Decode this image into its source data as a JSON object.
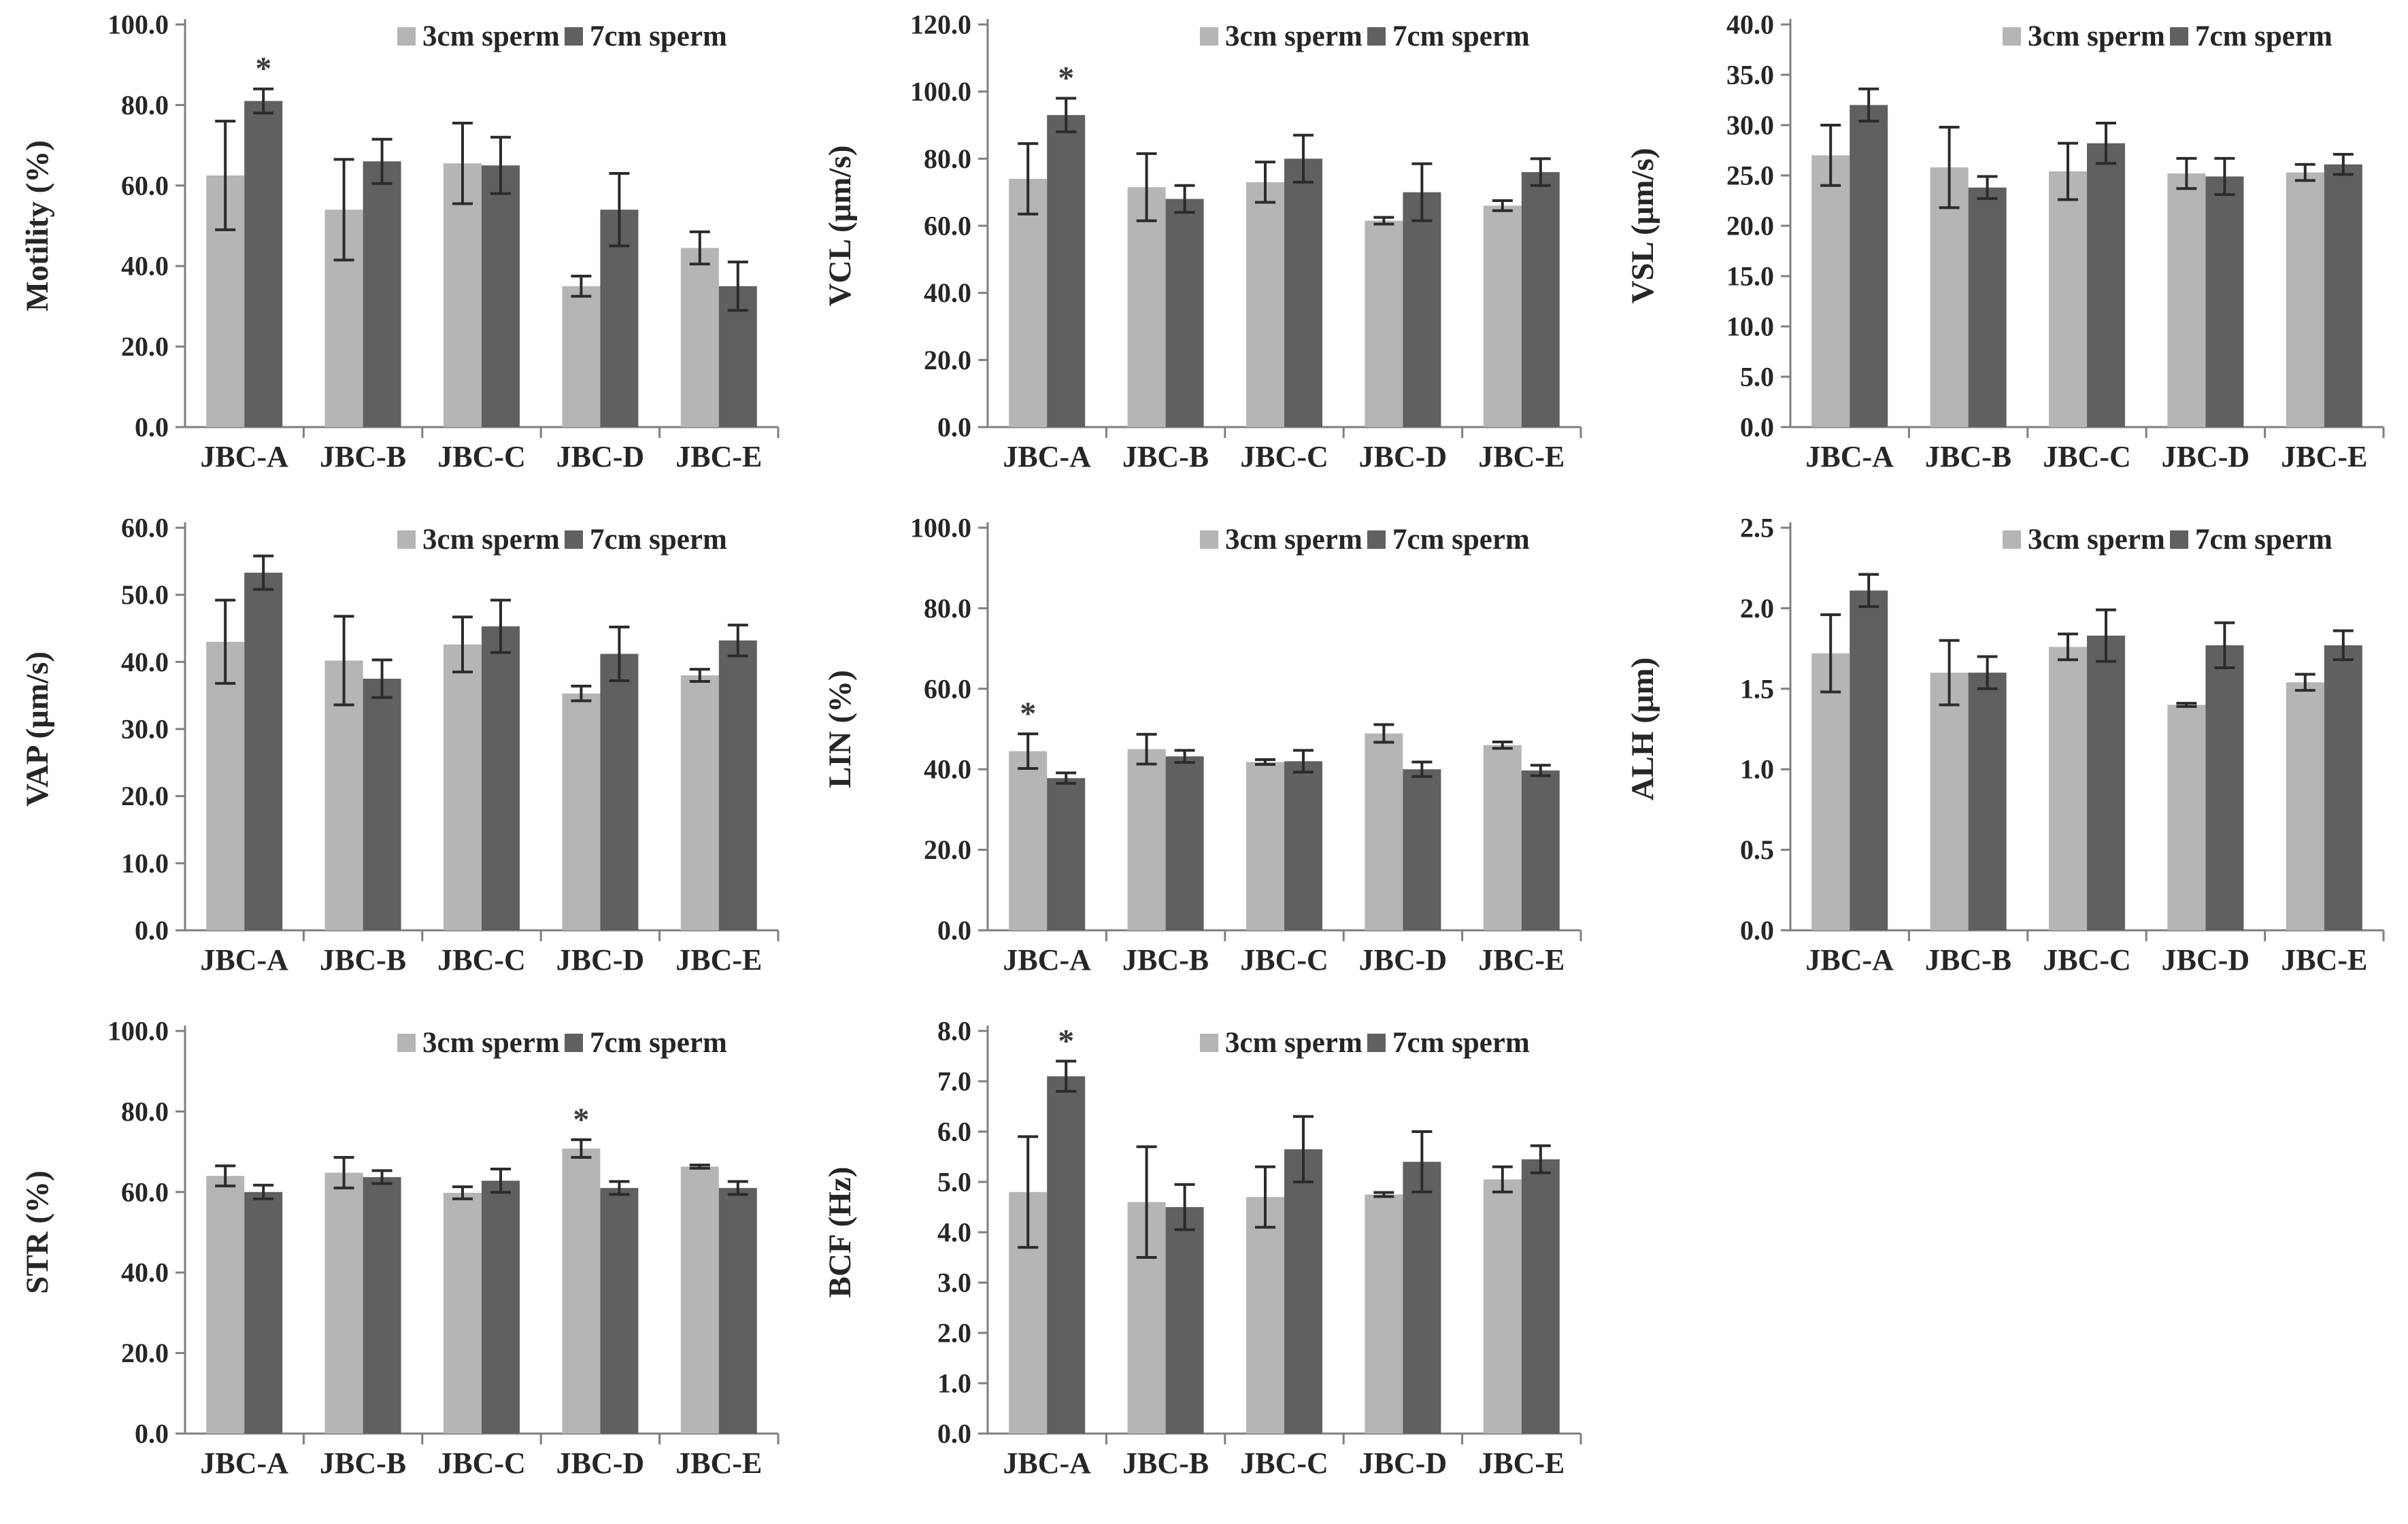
{
  "figure": {
    "description_labels": [
      "Motility (%)",
      "VCL (μm/s)",
      "VSL (μm/s)",
      "VAP (μm/s)",
      "LIN (%)",
      "ALH (μm)",
      "STR (%)",
      "BCF (Hz)"
    ],
    "background": "#ffffff",
    "axis_color": "#7f7f7f",
    "error_bar_color": "#2b2b2b",
    "text_color": "#262626"
  },
  "legend": {
    "position": "top-right",
    "items": [
      {
        "label": "3cm sperm",
        "color": "#b5b5b5"
      },
      {
        "label": "7cm sperm",
        "color": "#606060"
      }
    ]
  },
  "categories": [
    "JBC-A",
    "JBC-B",
    "JBC-C",
    "JBC-D",
    "JBC-E"
  ],
  "chart_data": [
    {
      "id": "motility",
      "type": "bar",
      "title": "",
      "xlabel": "",
      "ylabel": "Motility (%)",
      "ylim": [
        0,
        100
      ],
      "ytick_step": 20,
      "yticks": [
        "0.0",
        "20.0",
        "40.0",
        "60.0",
        "80.0",
        "100.0"
      ],
      "grid": false,
      "legend_position": "top-right",
      "categories": [
        "JBC-A",
        "JBC-B",
        "JBC-C",
        "JBC-D",
        "JBC-E"
      ],
      "series": [
        {
          "name": "3cm sperm",
          "color": "#b5b5b5",
          "values": [
            62.5,
            54.0,
            65.5,
            35.0,
            44.5
          ],
          "errors": [
            13.5,
            12.5,
            10.0,
            2.5,
            4.0
          ]
        },
        {
          "name": "7cm sperm",
          "color": "#606060",
          "values": [
            81.0,
            66.0,
            65.0,
            54.0,
            35.0
          ],
          "errors": [
            3.0,
            5.5,
            7.0,
            9.0,
            6.0
          ]
        }
      ],
      "significance": [
        {
          "series": 1,
          "category": 0,
          "text": "*"
        }
      ]
    },
    {
      "id": "vcl",
      "type": "bar",
      "title": "",
      "xlabel": "",
      "ylabel": "VCL (μm/s)",
      "ylim": [
        0,
        120
      ],
      "ytick_step": 20,
      "yticks": [
        "0.0",
        "20.0",
        "40.0",
        "60.0",
        "80.0",
        "100.0",
        "120.0"
      ],
      "grid": false,
      "legend_position": "top-right",
      "categories": [
        "JBC-A",
        "JBC-B",
        "JBC-C",
        "JBC-D",
        "JBC-E"
      ],
      "series": [
        {
          "name": "3cm sperm",
          "color": "#b5b5b5",
          "values": [
            74.0,
            71.5,
            73.0,
            61.5,
            66.0
          ],
          "errors": [
            10.5,
            10.0,
            6.0,
            1.0,
            1.5
          ]
        },
        {
          "name": "7cm sperm",
          "color": "#606060",
          "values": [
            93.0,
            68.0,
            80.0,
            70.0,
            76.0
          ],
          "errors": [
            5.0,
            4.0,
            7.0,
            8.5,
            4.0
          ]
        }
      ],
      "significance": [
        {
          "series": 1,
          "category": 0,
          "text": "*"
        }
      ]
    },
    {
      "id": "vsl",
      "type": "bar",
      "title": "",
      "xlabel": "",
      "ylabel": "VSL (μm/s)",
      "ylim": [
        0,
        40
      ],
      "ytick_step": 5,
      "yticks": [
        "0.0",
        "5.0",
        "10.0",
        "15.0",
        "20.0",
        "25.0",
        "30.0",
        "35.0",
        "40.0"
      ],
      "grid": false,
      "legend_position": "top-right",
      "categories": [
        "JBC-A",
        "JBC-B",
        "JBC-C",
        "JBC-D",
        "JBC-E"
      ],
      "series": [
        {
          "name": "3cm sperm",
          "color": "#b5b5b5",
          "values": [
            27.0,
            25.8,
            25.4,
            25.2,
            25.3
          ],
          "errors": [
            3.0,
            4.0,
            2.8,
            1.5,
            0.8
          ]
        },
        {
          "name": "7cm sperm",
          "color": "#606060",
          "values": [
            32.0,
            23.8,
            28.2,
            24.9,
            26.1
          ],
          "errors": [
            1.6,
            1.1,
            2.0,
            1.8,
            1.0
          ]
        }
      ],
      "significance": []
    },
    {
      "id": "vap",
      "type": "bar",
      "title": "",
      "xlabel": "",
      "ylabel": "VAP (μm/s)",
      "ylim": [
        0,
        60
      ],
      "ytick_step": 10,
      "yticks": [
        "0.0",
        "10.0",
        "20.0",
        "30.0",
        "40.0",
        "50.0",
        "60.0"
      ],
      "grid": false,
      "legend_position": "top-right",
      "categories": [
        "JBC-A",
        "JBC-B",
        "JBC-C",
        "JBC-D",
        "JBC-E"
      ],
      "series": [
        {
          "name": "3cm sperm",
          "color": "#b5b5b5",
          "values": [
            43.0,
            40.2,
            42.6,
            35.3,
            38.0
          ],
          "errors": [
            6.2,
            6.6,
            4.1,
            1.1,
            0.9
          ]
        },
        {
          "name": "7cm sperm",
          "color": "#606060",
          "values": [
            53.3,
            37.5,
            45.3,
            41.2,
            43.2
          ],
          "errors": [
            2.5,
            2.8,
            3.9,
            4.0,
            2.3
          ]
        }
      ],
      "significance": []
    },
    {
      "id": "lin",
      "type": "bar",
      "title": "",
      "xlabel": "",
      "ylabel": "LIN (%)",
      "ylim": [
        0,
        100
      ],
      "ytick_step": 20,
      "yticks": [
        "0.0",
        "20.0",
        "40.0",
        "60.0",
        "80.0",
        "100.0"
      ],
      "grid": false,
      "legend_position": "top-right",
      "categories": [
        "JBC-A",
        "JBC-B",
        "JBC-C",
        "JBC-D",
        "JBC-E"
      ],
      "series": [
        {
          "name": "3cm sperm",
          "color": "#b5b5b5",
          "values": [
            44.5,
            45.0,
            41.8,
            48.9,
            46.0
          ],
          "errors": [
            4.3,
            3.7,
            0.6,
            2.2,
            0.8
          ]
        },
        {
          "name": "7cm sperm",
          "color": "#606060",
          "values": [
            37.8,
            43.2,
            42.0,
            40.0,
            39.7
          ],
          "errors": [
            1.3,
            1.5,
            2.7,
            1.8,
            1.3
          ]
        }
      ],
      "significance": [
        {
          "series": 0,
          "category": 0,
          "text": "*"
        }
      ]
    },
    {
      "id": "alh",
      "type": "bar",
      "title": "",
      "xlabel": "",
      "ylabel": "ALH (μm)",
      "ylim": [
        0,
        2.5
      ],
      "ytick_step": 0.5,
      "yticks": [
        "0.0",
        "0.5",
        "1.0",
        "1.5",
        "2.0",
        "2.5"
      ],
      "grid": false,
      "legend_position": "top-right",
      "categories": [
        "JBC-A",
        "JBC-B",
        "JBC-C",
        "JBC-D",
        "JBC-E"
      ],
      "series": [
        {
          "name": "3cm sperm",
          "color": "#b5b5b5",
          "values": [
            1.72,
            1.6,
            1.76,
            1.4,
            1.54
          ],
          "errors": [
            0.24,
            0.2,
            0.08,
            0.01,
            0.05
          ]
        },
        {
          "name": "7cm sperm",
          "color": "#606060",
          "values": [
            2.11,
            1.6,
            1.83,
            1.77,
            1.77
          ],
          "errors": [
            0.1,
            0.1,
            0.16,
            0.14,
            0.09
          ]
        }
      ],
      "significance": []
    },
    {
      "id": "str",
      "type": "bar",
      "title": "",
      "xlabel": "",
      "ylabel": "STR (%)",
      "ylim": [
        0,
        100
      ],
      "ytick_step": 20,
      "yticks": [
        "0.0",
        "20.0",
        "40.0",
        "60.0",
        "80.0",
        "100.0"
      ],
      "grid": false,
      "legend_position": "top-right",
      "categories": [
        "JBC-A",
        "JBC-B",
        "JBC-C",
        "JBC-D",
        "JBC-E"
      ],
      "series": [
        {
          "name": "3cm sperm",
          "color": "#b5b5b5",
          "values": [
            64.0,
            64.8,
            59.8,
            70.8,
            66.3
          ],
          "errors": [
            2.5,
            3.8,
            1.5,
            2.2,
            0.4
          ]
        },
        {
          "name": "7cm sperm",
          "color": "#606060",
          "values": [
            60.0,
            63.7,
            62.8,
            61.0,
            61.0
          ],
          "errors": [
            1.7,
            1.6,
            2.9,
            1.6,
            1.6
          ]
        }
      ],
      "significance": [
        {
          "series": 0,
          "category": 3,
          "text": "*"
        }
      ]
    },
    {
      "id": "bcf",
      "type": "bar",
      "title": "",
      "xlabel": "",
      "ylabel": "BCF (Hz)",
      "ylim": [
        0,
        8
      ],
      "ytick_step": 1,
      "yticks": [
        "0.0",
        "1.0",
        "2.0",
        "3.0",
        "4.0",
        "5.0",
        "6.0",
        "7.0",
        "8.0"
      ],
      "grid": false,
      "legend_position": "top-right",
      "categories": [
        "JBC-A",
        "JBC-B",
        "JBC-C",
        "JBC-D",
        "JBC-E"
      ],
      "series": [
        {
          "name": "3cm sperm",
          "color": "#b5b5b5",
          "values": [
            4.8,
            4.6,
            4.7,
            4.75,
            5.05
          ],
          "errors": [
            1.1,
            1.1,
            0.6,
            0.04,
            0.25
          ]
        },
        {
          "name": "7cm sperm",
          "color": "#606060",
          "values": [
            7.1,
            4.5,
            5.65,
            5.4,
            5.45
          ],
          "errors": [
            0.3,
            0.45,
            0.65,
            0.6,
            0.27
          ]
        }
      ],
      "significance": [
        {
          "series": 1,
          "category": 0,
          "text": "*"
        }
      ]
    }
  ]
}
